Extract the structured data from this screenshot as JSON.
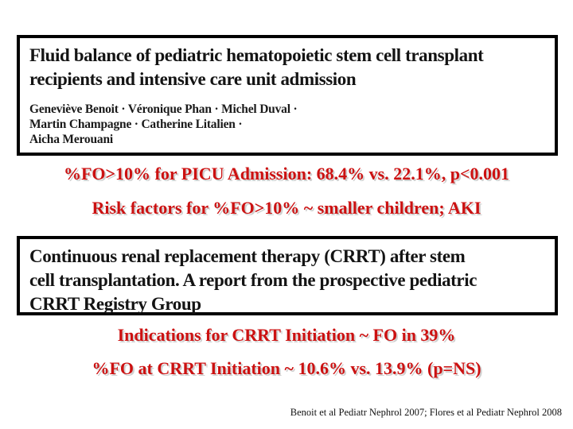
{
  "slide": {
    "background_color": "#ffffff",
    "accent_red": "#cc1111",
    "box_border_color": "#000000",
    "paper1": {
      "title_lines": {
        "0": "Fluid balance of pediatric hematopoietic stem cell transplant",
        "1": "recipients and intensive care unit admission"
      },
      "author_lines": {
        "0": "Geneviève Benoit · Véronique Phan · Michel Duval ·",
        "1": "Martin Champagne · Catherine Litalien ·",
        "2": "Aicha Merouani"
      }
    },
    "findings1": {
      "0": "%FO>10% for PICU Admission: 68.4% vs. 22.1%, p<0.001",
      "1": "Risk factors for %FO>10% ~ smaller children; AKI"
    },
    "paper2": {
      "title_lines": {
        "0": "Continuous renal replacement therapy (CRRT) after stem",
        "1": "cell transplantation. A report from the prospective pediatric",
        "2": "CRRT Registry Group"
      }
    },
    "findings2": {
      "0": "Indications for CRRT Initiation ~ FO in 39%",
      "1": "%FO at CRRT Initiation ~ 10.6% vs. 13.9% (p=NS)"
    },
    "citation": "Benoit et al Pediatr Nephrol 2007; Flores et al Pediatr Nephrol 2008"
  }
}
